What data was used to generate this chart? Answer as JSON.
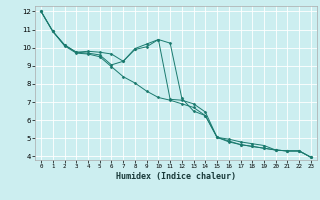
{
  "xlabel": "Humidex (Indice chaleur)",
  "bg_color": "#cceef0",
  "line_color": "#1a7a6e",
  "grid_color": "#ffffff",
  "xlim": [
    -0.5,
    23.5
  ],
  "ylim": [
    3.8,
    12.3
  ],
  "yticks": [
    4,
    5,
    6,
    7,
    8,
    9,
    10,
    11,
    12
  ],
  "xticks": [
    0,
    1,
    2,
    3,
    4,
    5,
    6,
    7,
    8,
    9,
    10,
    11,
    12,
    13,
    14,
    15,
    16,
    17,
    18,
    19,
    20,
    21,
    22,
    23
  ],
  "line1_x": [
    0,
    1,
    2,
    3,
    4,
    5,
    6,
    7,
    8,
    9,
    10,
    11,
    12,
    13,
    14,
    15,
    16,
    17,
    18,
    19,
    20,
    21,
    22,
    23
  ],
  "line1_y": [
    12.0,
    10.9,
    10.15,
    9.75,
    9.8,
    9.75,
    9.65,
    9.25,
    9.95,
    10.2,
    10.45,
    10.25,
    7.2,
    6.5,
    6.25,
    5.05,
    4.95,
    4.8,
    4.7,
    4.6,
    4.35,
    4.3,
    4.3,
    3.95
  ],
  "line2_x": [
    0,
    1,
    2,
    3,
    4,
    5,
    6,
    7,
    8,
    9,
    10,
    11,
    12,
    13,
    14,
    15,
    16,
    17,
    18,
    19,
    20,
    21,
    22,
    23
  ],
  "line2_y": [
    12.0,
    10.9,
    10.15,
    9.75,
    9.7,
    9.6,
    9.05,
    9.25,
    9.9,
    10.05,
    10.45,
    7.15,
    7.1,
    6.9,
    6.45,
    5.05,
    4.8,
    4.65,
    4.55,
    4.45,
    4.35,
    4.3,
    4.3,
    3.95
  ],
  "line3_x": [
    0,
    1,
    2,
    3,
    4,
    5,
    6,
    7,
    8,
    9,
    10,
    11,
    12,
    13,
    14,
    15,
    16,
    17,
    18,
    19,
    20,
    21,
    22,
    23
  ],
  "line3_y": [
    12.0,
    10.9,
    10.1,
    9.7,
    9.65,
    9.5,
    8.95,
    8.4,
    8.05,
    7.6,
    7.25,
    7.1,
    6.9,
    6.7,
    6.25,
    5.05,
    4.85,
    4.65,
    4.55,
    4.45,
    4.35,
    4.3,
    4.3,
    3.95
  ]
}
